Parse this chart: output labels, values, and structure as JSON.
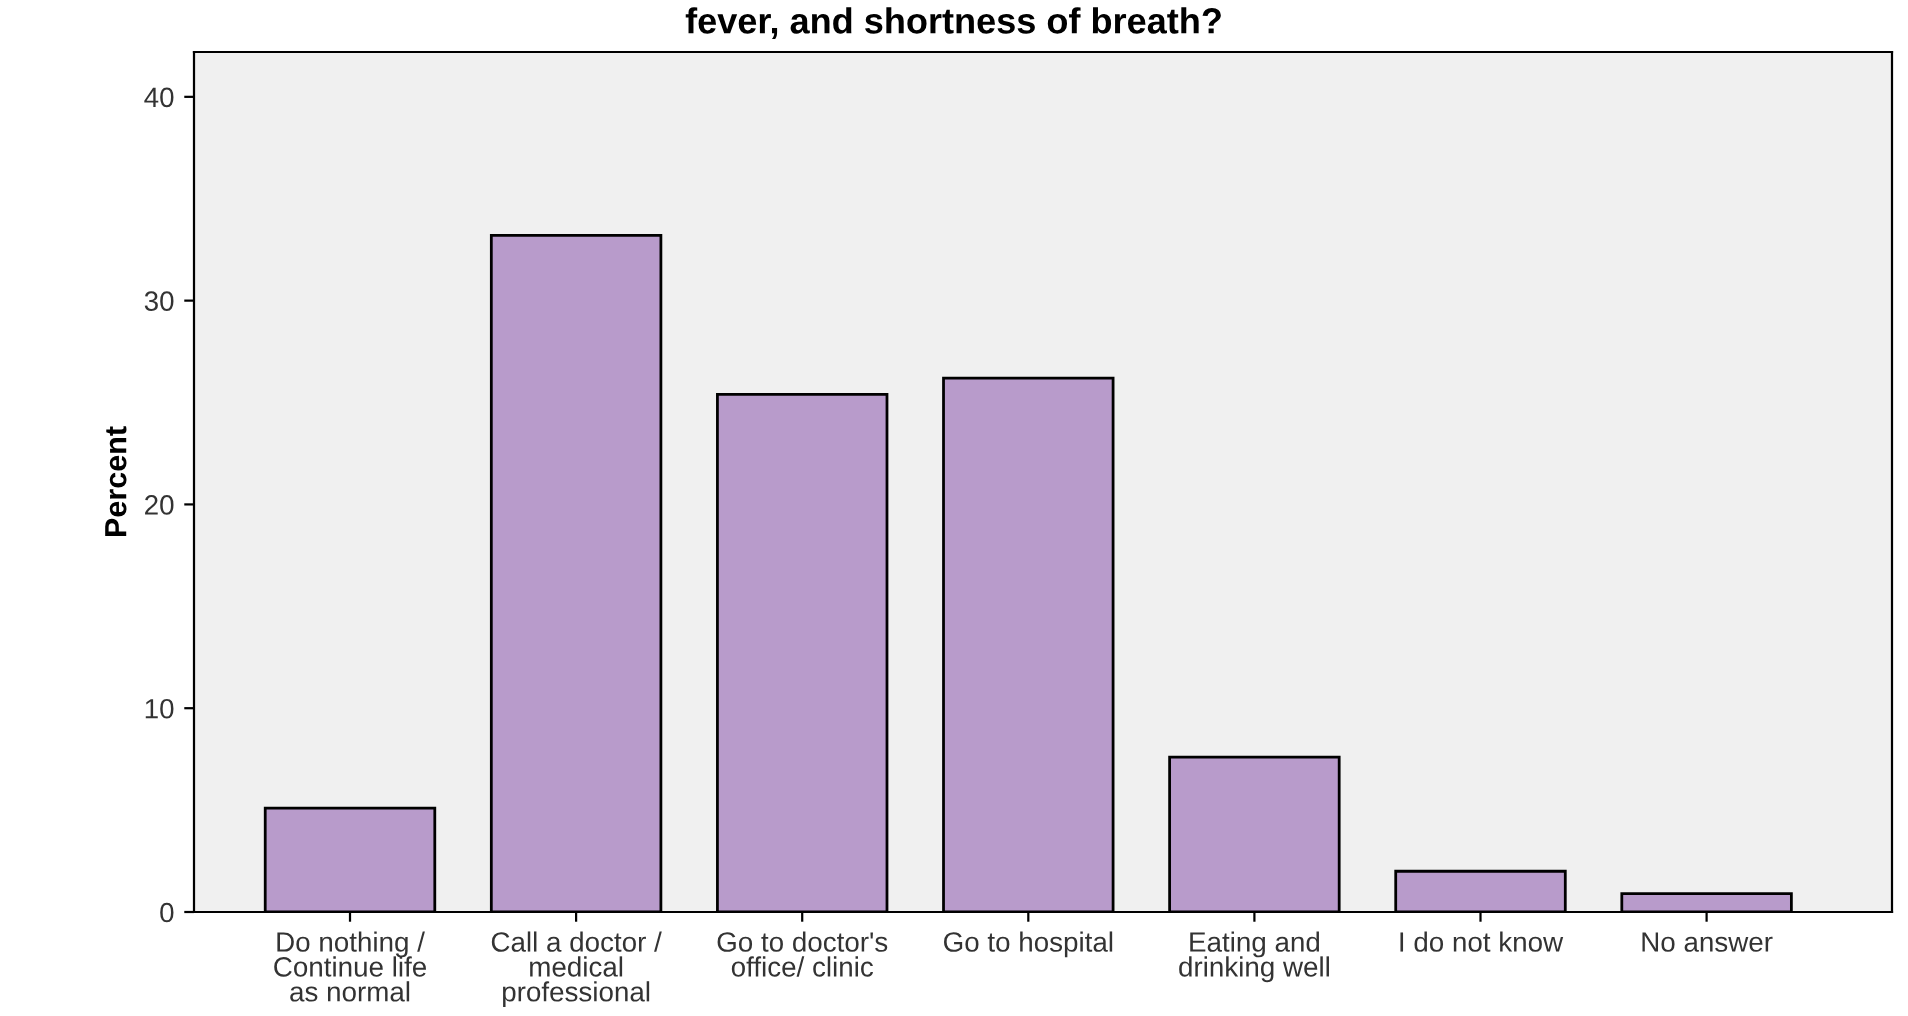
{
  "chart_data": {
    "type": "bar",
    "title": "fever, and shortness of breath?",
    "ylabel": "Percent",
    "categories": [
      "Do nothing /\nContinue life\nas normal",
      "Call a doctor /\nmedical\nprofessional",
      "Go to doctor's\noffice/ clinic",
      "Go to hospital",
      "Eating and\ndrinking well",
      "I do not know",
      "No answer"
    ],
    "values": [
      5.1,
      33.2,
      25.4,
      26.2,
      7.6,
      2.0,
      0.9
    ],
    "color": "#b89bcb",
    "ylim": [
      0,
      42.2
    ],
    "yticks": [
      0,
      10,
      20,
      30,
      40
    ],
    "grid": false
  }
}
